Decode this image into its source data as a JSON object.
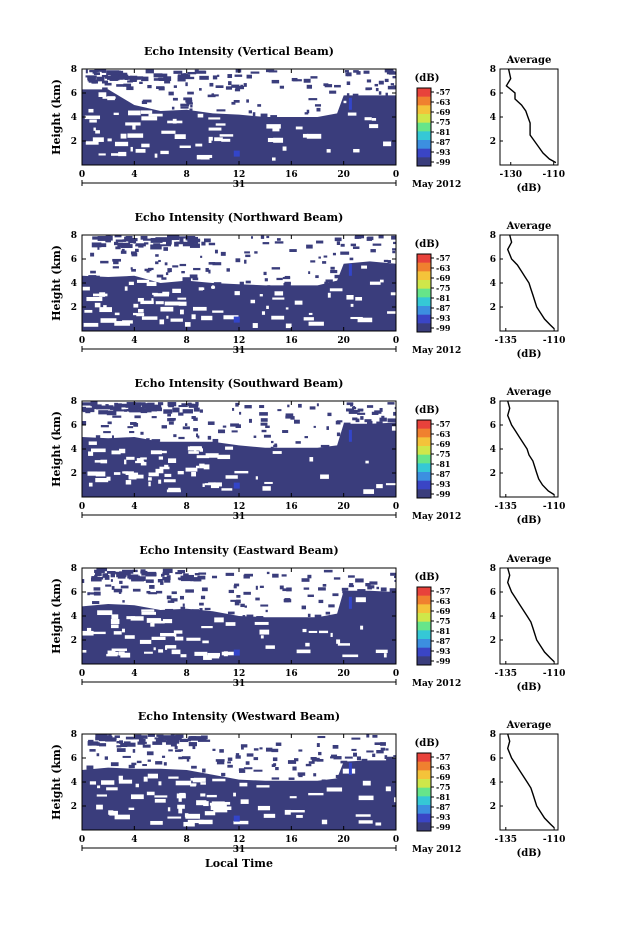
{
  "figure": {
    "xlabel": "Local Time",
    "day_label": "31",
    "date_label": "May 2012",
    "cbar_unit": "(dB)",
    "cbar_ticks": [
      "-57",
      "-63",
      "-69",
      "-75",
      "-81",
      "-87",
      "-93",
      "-99"
    ],
    "cbar_colors": [
      "#e8423b",
      "#f0802f",
      "#f4c33a",
      "#cfe74a",
      "#66e58a",
      "#35c8d6",
      "#3c8fe0",
      "#3a45c5",
      "#3a3d7c"
    ],
    "colors": {
      "echo_fill": "#3a3d7c",
      "echo_patch": "#3345c9",
      "no_echo": "#ffffff"
    }
  },
  "chart_data": [
    {
      "type": "heatmap",
      "title": "Echo Intensity (Vertical Beam)",
      "xlabel": "",
      "ylabel": "Height (km)",
      "xlim": [
        0,
        24
      ],
      "ylim": [
        0,
        8
      ],
      "x_ticks": [
        "0",
        "4",
        "8",
        "12",
        "16",
        "20",
        "0"
      ],
      "y_ticks": [
        "2",
        "4",
        "6",
        "8"
      ],
      "echo_top_km": [
        [
          0,
          6.3
        ],
        [
          2,
          6.3
        ],
        [
          4,
          5.0
        ],
        [
          6,
          4.5
        ],
        [
          8,
          4.6
        ],
        [
          10,
          4.3
        ],
        [
          12,
          4.2
        ],
        [
          14,
          4.0
        ],
        [
          16,
          4.0
        ],
        [
          18,
          4.0
        ],
        [
          19.5,
          4.3
        ],
        [
          20,
          5.8
        ],
        [
          22,
          5.8
        ],
        [
          24,
          5.8
        ]
      ],
      "profile": {
        "title": "Average",
        "xlabel": "(dB)",
        "x_ticks": [
          "-130",
          "-110"
        ],
        "xlim": [
          -135,
          -108
        ],
        "ylim": [
          0,
          8
        ],
        "y_ticks": [
          "2",
          "4",
          "6",
          "8"
        ],
        "x": [
          -109,
          -112,
          -115,
          -117,
          -119,
          -121,
          -121,
          -121,
          -122,
          -123,
          -125,
          -128,
          -128,
          -132,
          -130,
          -131
        ],
        "y": [
          0.2,
          0.5,
          1.0,
          1.5,
          2.0,
          2.5,
          3.0,
          3.5,
          4.0,
          4.5,
          5.0,
          5.5,
          6.0,
          6.6,
          7.2,
          8.0
        ]
      }
    },
    {
      "type": "heatmap",
      "title": "Echo Intensity (Northward Beam)",
      "xlabel": "",
      "ylabel": "Height (km)",
      "xlim": [
        0,
        24
      ],
      "ylim": [
        0,
        8
      ],
      "x_ticks": [
        "0",
        "4",
        "8",
        "12",
        "16",
        "20",
        "0"
      ],
      "y_ticks": [
        "2",
        "4",
        "6",
        "8"
      ],
      "echo_top_km": [
        [
          0,
          4.6
        ],
        [
          2,
          4.5
        ],
        [
          4,
          4.6
        ],
        [
          6,
          4.0
        ],
        [
          8,
          4.2
        ],
        [
          10,
          4.0
        ],
        [
          12,
          3.9
        ],
        [
          14,
          3.8
        ],
        [
          16,
          3.8
        ],
        [
          18,
          3.8
        ],
        [
          19.5,
          4.2
        ],
        [
          20,
          5.6
        ],
        [
          22,
          5.8
        ],
        [
          24,
          5.6
        ]
      ],
      "profile": {
        "title": "Average",
        "xlabel": "(dB)",
        "x_ticks": [
          "-135",
          "-110"
        ],
        "xlim": [
          -138,
          -108
        ],
        "ylim": [
          0,
          8
        ],
        "y_ticks": [
          "2",
          "4",
          "6",
          "8"
        ],
        "x": [
          -110,
          -112,
          -115,
          -117,
          -119,
          -120,
          -121,
          -122,
          -123,
          -125,
          -127,
          -129,
          -132,
          -134,
          -132,
          -133
        ],
        "y": [
          0.2,
          0.5,
          1.0,
          1.5,
          2.0,
          2.5,
          3.0,
          3.5,
          4.0,
          4.5,
          5.0,
          5.5,
          6.0,
          6.8,
          7.4,
          8.0
        ]
      }
    },
    {
      "type": "heatmap",
      "title": "Echo Intensity (Southward Beam)",
      "xlabel": "",
      "ylabel": "Height (km)",
      "xlim": [
        0,
        24
      ],
      "ylim": [
        0,
        8
      ],
      "x_ticks": [
        "0",
        "4",
        "8",
        "12",
        "16",
        "20",
        "0"
      ],
      "y_ticks": [
        "2",
        "4",
        "6",
        "8"
      ],
      "echo_top_km": [
        [
          0,
          5.0
        ],
        [
          2,
          4.9
        ],
        [
          4,
          5.0
        ],
        [
          6,
          4.6
        ],
        [
          8,
          4.6
        ],
        [
          10,
          4.6
        ],
        [
          12,
          4.3
        ],
        [
          14,
          4.1
        ],
        [
          16,
          4.1
        ],
        [
          18,
          4.1
        ],
        [
          19.5,
          4.3
        ],
        [
          20,
          6.1
        ],
        [
          22,
          6.1
        ],
        [
          24,
          6.2
        ]
      ],
      "profile": {
        "title": "Average",
        "xlabel": "(dB)",
        "x_ticks": [
          "-135",
          "-110"
        ],
        "xlim": [
          -138,
          -108
        ],
        "ylim": [
          0,
          8
        ],
        "y_ticks": [
          "2",
          "4",
          "6",
          "8"
        ],
        "x": [
          -110,
          -113,
          -116,
          -118,
          -119,
          -120,
          -121,
          -123,
          -124,
          -126,
          -128,
          -130,
          -132,
          -134,
          -133,
          -134
        ],
        "y": [
          0.2,
          0.5,
          1.0,
          1.5,
          2.0,
          2.5,
          3.0,
          3.5,
          4.0,
          4.5,
          5.0,
          5.5,
          6.0,
          6.8,
          7.4,
          8.0
        ]
      }
    },
    {
      "type": "heatmap",
      "title": "Echo Intensity (Eastward Beam)",
      "xlabel": "",
      "ylabel": "Height (km)",
      "xlim": [
        0,
        24
      ],
      "ylim": [
        0,
        8
      ],
      "x_ticks": [
        "0",
        "4",
        "8",
        "12",
        "16",
        "20",
        "0"
      ],
      "y_ticks": [
        "2",
        "4",
        "6",
        "8"
      ],
      "echo_top_km": [
        [
          0,
          4.8
        ],
        [
          2,
          5.0
        ],
        [
          4,
          4.9
        ],
        [
          6,
          4.5
        ],
        [
          8,
          4.6
        ],
        [
          10,
          4.4
        ],
        [
          12,
          4.0
        ],
        [
          14,
          3.9
        ],
        [
          16,
          3.9
        ],
        [
          18,
          3.9
        ],
        [
          19.5,
          4.2
        ],
        [
          20,
          6.1
        ],
        [
          22,
          6.1
        ],
        [
          24,
          6.0
        ]
      ],
      "profile": {
        "title": "Average",
        "xlabel": "(dB)",
        "x_ticks": [
          "-135",
          "-110"
        ],
        "xlim": [
          -138,
          -108
        ],
        "ylim": [
          0,
          8
        ],
        "y_ticks": [
          "2",
          "4",
          "6",
          "8"
        ],
        "x": [
          -110,
          -112,
          -115,
          -117,
          -119,
          -120,
          -121,
          -122,
          -124,
          -126,
          -128,
          -130,
          -132,
          -134,
          -133,
          -134
        ],
        "y": [
          0.2,
          0.5,
          1.0,
          1.5,
          2.0,
          2.5,
          3.0,
          3.5,
          4.0,
          4.5,
          5.0,
          5.5,
          6.0,
          6.8,
          7.4,
          8.0
        ]
      }
    },
    {
      "type": "heatmap",
      "title": "Echo Intensity (Westward Beam)",
      "xlabel": "Local Time",
      "ylabel": "Height (km)",
      "xlim": [
        0,
        24
      ],
      "ylim": [
        0,
        8
      ],
      "x_ticks": [
        "0",
        "4",
        "8",
        "12",
        "16",
        "20",
        "0"
      ],
      "y_ticks": [
        "2",
        "4",
        "6",
        "8"
      ],
      "echo_top_km": [
        [
          0,
          5.0
        ],
        [
          2,
          5.2
        ],
        [
          4,
          5.1
        ],
        [
          6,
          5.1
        ],
        [
          8,
          5.0
        ],
        [
          10,
          4.6
        ],
        [
          12,
          4.2
        ],
        [
          14,
          4.1
        ],
        [
          16,
          4.1
        ],
        [
          18,
          4.1
        ],
        [
          19.5,
          4.3
        ],
        [
          20,
          5.7
        ],
        [
          22,
          5.8
        ],
        [
          24,
          5.8
        ]
      ],
      "profile": {
        "title": "Average",
        "xlabel": "(dB)",
        "x_ticks": [
          "-135",
          "-110"
        ],
        "xlim": [
          -138,
          -108
        ],
        "ylim": [
          0,
          8
        ],
        "y_ticks": [
          "2",
          "4",
          "6",
          "8"
        ],
        "x": [
          -110,
          -112,
          -115,
          -117,
          -119,
          -120,
          -121,
          -122,
          -124,
          -126,
          -128,
          -130,
          -132,
          -134,
          -133,
          -134
        ],
        "y": [
          0.2,
          0.5,
          1.0,
          1.5,
          2.0,
          2.5,
          3.0,
          3.5,
          4.0,
          4.5,
          5.0,
          5.5,
          6.0,
          6.8,
          7.4,
          8.0
        ]
      }
    }
  ]
}
